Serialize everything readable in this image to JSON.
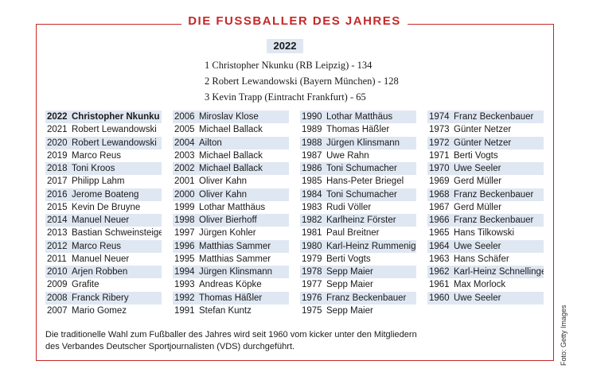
{
  "title": "DIE FUSSBALLER DES JAHRES",
  "current_year": "2022",
  "podium": [
    "1 Christopher Nkunku (RB Leipzig) - 134",
    "2 Robert Lewandowski (Bayern München) - 128",
    "3 Kevin Trapp (Eintracht Frankfurt) - 65"
  ],
  "columns": [
    [
      {
        "year": "2022",
        "name": "Christopher Nkunku"
      },
      {
        "year": "2021",
        "name": "Robert Lewandowski"
      },
      {
        "year": "2020",
        "name": "Robert Lewandowski"
      },
      {
        "year": "2019",
        "name": "Marco Reus"
      },
      {
        "year": "2018",
        "name": "Toni Kroos"
      },
      {
        "year": "2017",
        "name": "Philipp Lahm"
      },
      {
        "year": "2016",
        "name": "Jerome Boateng"
      },
      {
        "year": "2015",
        "name": "Kevin De Bruyne"
      },
      {
        "year": "2014",
        "name": "Manuel Neuer"
      },
      {
        "year": "2013",
        "name": "Bastian Schweinsteiger"
      },
      {
        "year": "2012",
        "name": "Marco Reus"
      },
      {
        "year": "2011",
        "name": "Manuel Neuer"
      },
      {
        "year": "2010",
        "name": "Arjen Robben"
      },
      {
        "year": "2009",
        "name": "Grafite"
      },
      {
        "year": "2008",
        "name": "Franck Ribery"
      },
      {
        "year": "2007",
        "name": "Mario Gomez"
      }
    ],
    [
      {
        "year": "2006",
        "name": "Miroslav Klose"
      },
      {
        "year": "2005",
        "name": "Michael Ballack"
      },
      {
        "year": "2004",
        "name": "Ailton"
      },
      {
        "year": "2003",
        "name": "Michael Ballack"
      },
      {
        "year": "2002",
        "name": "Michael Ballack"
      },
      {
        "year": "2001",
        "name": "Oliver Kahn"
      },
      {
        "year": "2000",
        "name": "Oliver Kahn"
      },
      {
        "year": "1999",
        "name": "Lothar Matthäus"
      },
      {
        "year": "1998",
        "name": "Oliver Bierhoff"
      },
      {
        "year": "1997",
        "name": "Jürgen Kohler"
      },
      {
        "year": "1996",
        "name": "Matthias Sammer"
      },
      {
        "year": "1995",
        "name": "Matthias Sammer"
      },
      {
        "year": "1994",
        "name": "Jürgen Klinsmann"
      },
      {
        "year": "1993",
        "name": "Andreas Köpke"
      },
      {
        "year": "1992",
        "name": "Thomas Häßler"
      },
      {
        "year": "1991",
        "name": "Stefan Kuntz"
      }
    ],
    [
      {
        "year": "1990",
        "name": "Lothar Matthäus"
      },
      {
        "year": "1989",
        "name": "Thomas Häßler"
      },
      {
        "year": "1988",
        "name": "Jürgen Klinsmann"
      },
      {
        "year": "1987",
        "name": "Uwe Rahn"
      },
      {
        "year": "1986",
        "name": "Toni Schumacher"
      },
      {
        "year": "1985",
        "name": "Hans-Peter Briegel"
      },
      {
        "year": "1984",
        "name": "Toni Schumacher"
      },
      {
        "year": "1983",
        "name": "Rudi Völler"
      },
      {
        "year": "1982",
        "name": "Karlheinz Förster"
      },
      {
        "year": "1981",
        "name": "Paul Breitner"
      },
      {
        "year": "1980",
        "name": "Karl-Heinz Rummenigge"
      },
      {
        "year": "1979",
        "name": "Berti Vogts"
      },
      {
        "year": "1978",
        "name": "Sepp Maier"
      },
      {
        "year": "1977",
        "name": "Sepp Maier"
      },
      {
        "year": "1976",
        "name": "Franz Beckenbauer"
      },
      {
        "year": "1975",
        "name": "Sepp Maier"
      }
    ],
    [
      {
        "year": "1974",
        "name": "Franz Beckenbauer"
      },
      {
        "year": "1973",
        "name": "Günter Netzer"
      },
      {
        "year": "1972",
        "name": "Günter Netzer"
      },
      {
        "year": "1971",
        "name": "Berti Vogts"
      },
      {
        "year": "1970",
        "name": "Uwe Seeler"
      },
      {
        "year": "1969",
        "name": "Gerd Müller"
      },
      {
        "year": "1968",
        "name": "Franz Beckenbauer"
      },
      {
        "year": "1967",
        "name": "Gerd Müller"
      },
      {
        "year": "1966",
        "name": "Franz Beckenbauer"
      },
      {
        "year": "1965",
        "name": "Hans Tilkowski"
      },
      {
        "year": "1964",
        "name": "Uwe Seeler"
      },
      {
        "year": "1963",
        "name": "Hans Schäfer"
      },
      {
        "year": "1962",
        "name": "Karl-Heinz Schnellinger"
      },
      {
        "year": "1961",
        "name": "Max Morlock"
      },
      {
        "year": "1960",
        "name": "Uwe Seeler"
      }
    ]
  ],
  "footnote_line1": "Die traditionelle Wahl zum Fußballer des Jahres wird seit 1960 vom kicker unter den Mitgliedern",
  "footnote_line2": "des Verbandes Deutscher Sportjournalisten (VDS) durchgeführt.",
  "photo_credit": "Foto: Getty Images",
  "colors": {
    "accent": "#c62828",
    "row_shade": "#dfe7f2"
  }
}
